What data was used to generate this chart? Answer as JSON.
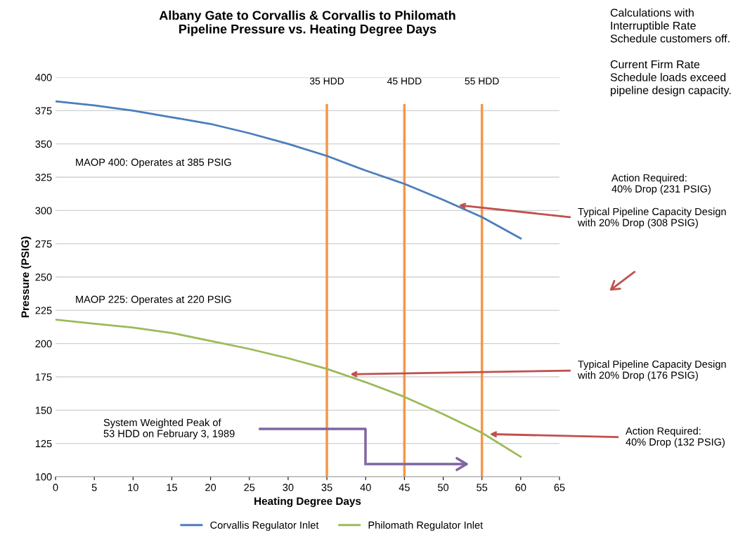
{
  "chart_data": {
    "type": "line",
    "title": "Albany Gate to Corvallis & Corvallis to Philomath\nPipeline Pressure vs. Heating Degree Days",
    "xlabel": "Heating Degree Days",
    "ylabel": "Pressure (PSIG)",
    "x": [
      0,
      5,
      10,
      15,
      20,
      25,
      30,
      35,
      40,
      45,
      50,
      55,
      60
    ],
    "series": [
      {
        "name": "Corvallis Regulator Inlet",
        "color": "#4a7ebb",
        "values": [
          382,
          379,
          375,
          370,
          365,
          358,
          350,
          341,
          330,
          320,
          308,
          295,
          279
        ]
      },
      {
        "name": "Philomath Regulator Inlet",
        "color": "#9bbb59",
        "values": [
          218,
          215,
          212,
          208,
          202,
          196,
          189,
          181,
          171,
          160,
          147,
          133,
          115
        ]
      }
    ],
    "xlim": [
      0,
      65
    ],
    "xticks": [
      0,
      5,
      10,
      15,
      20,
      25,
      30,
      35,
      40,
      45,
      50,
      55,
      60,
      65
    ],
    "ylim": [
      100,
      400
    ],
    "yticks": [
      100,
      125,
      150,
      175,
      200,
      225,
      250,
      275,
      300,
      325,
      350,
      375,
      400
    ],
    "ref_lines": [
      {
        "axis": "x",
        "value": 35,
        "label": "35 HDD",
        "color": "#f79646"
      },
      {
        "axis": "x",
        "value": 45,
        "label": "45 HDD",
        "color": "#f79646"
      },
      {
        "axis": "x",
        "value": 55,
        "label": "55 HDD",
        "color": "#f79646"
      }
    ],
    "annotations": [
      "MAOP 400: Operates at 385 PSIG",
      "MAOP 225: Operates at 220 PSIG",
      "System Weighted Peak of\n53 HDD on February 3, 1989",
      "Calculations with\nInterruptible Rate\nSchedule customers off.\n\nCurrent Firm Rate\nSchedule loads exceed\npipeline design capacity.",
      {
        "text": "Typical Pipeline Capacity Design\nwith 20% Drop (308 PSIG)",
        "x": 52,
        "y": 304
      },
      "Action Required:\n40% Drop (231 PSIG)",
      {
        "text": "Typical Pipeline Capacity Design\nwith 20% Drop (176 PSIG)",
        "x": 38,
        "y": 177
      },
      {
        "text": "Action Required:\n40% Drop (132 PSIG)",
        "x": 56,
        "y": 132
      }
    ],
    "grid": "y",
    "legend": "bottom",
    "marker": "none",
    "line_style": "solid"
  }
}
